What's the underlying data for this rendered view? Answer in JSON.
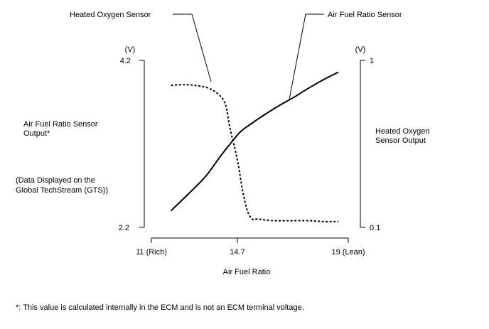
{
  "chart_data": {
    "type": "line",
    "title": "",
    "xlabel": "Air Fuel Ratio",
    "x_ticks": [
      {
        "value": 11,
        "label": "11 (Rich)"
      },
      {
        "value": 14.7,
        "label": "14.7"
      },
      {
        "value": 19,
        "label": "19 (Lean)"
      }
    ],
    "xlim": [
      11,
      19
    ],
    "left_axis": {
      "label_lines": [
        "Air Fuel Ratio Sensor",
        "Output*"
      ],
      "note_lines": [
        "(Data Displayed on the",
        "Global TechStream (GTS))"
      ],
      "unit": "(V)",
      "ticks": [
        "4.2",
        "2.2"
      ],
      "ylim": [
        2.2,
        4.2
      ]
    },
    "right_axis": {
      "label_lines": [
        "Heated Oxygen",
        "Sensor Output"
      ],
      "unit": "(V)",
      "ticks": [
        "1",
        "0.1"
      ],
      "ylim": [
        0.1,
        1
      ]
    },
    "series": [
      {
        "name": "Air Fuel Ratio Sensor",
        "axis": "left",
        "style": "solid",
        "x": [
          11.8,
          12.5,
          13.2,
          13.8,
          14.2,
          14.6,
          15.0,
          15.6,
          16.2,
          16.8,
          17.4,
          18.0,
          18.6
        ],
        "y": [
          2.4,
          2.6,
          2.81,
          3.05,
          3.2,
          3.34,
          3.43,
          3.55,
          3.66,
          3.76,
          3.87,
          3.97,
          4.06
        ]
      },
      {
        "name": "Heated Oxygen Sensor",
        "axis": "left",
        "style": "dashed",
        "x": [
          11.8,
          12.3,
          12.8,
          13.3,
          13.7,
          14.0,
          14.2,
          14.5,
          14.7,
          14.9,
          15.1,
          15.3,
          15.6,
          16.0,
          16.6,
          17.4,
          18.0,
          18.6
        ],
        "y": [
          3.9,
          3.91,
          3.9,
          3.87,
          3.8,
          3.68,
          3.38,
          3.0,
          2.65,
          2.4,
          2.3,
          2.3,
          2.29,
          2.28,
          2.28,
          2.28,
          2.27,
          2.27
        ]
      }
    ],
    "annotations": [
      {
        "text": "Heated Oxygen Sensor",
        "series": "Heated Oxygen Sensor"
      },
      {
        "text": "Air Fuel Ratio Sensor",
        "series": "Air Fuel Ratio Sensor"
      }
    ],
    "footnote": "*: This value is calculated internally in the ECM and is not an ECM terminal voltage."
  }
}
